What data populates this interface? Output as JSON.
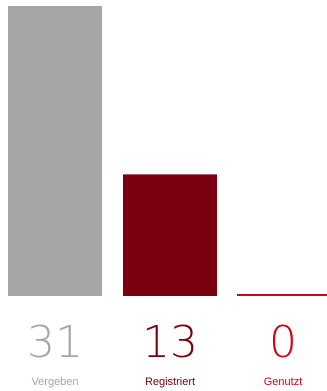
{
  "chart_data": {
    "type": "bar",
    "categories": [
      "Vergeben",
      "Registriert",
      "Genutzt"
    ],
    "values": [
      31,
      13,
      0
    ],
    "value_labels": [
      "31",
      "13",
      "0"
    ],
    "colors": [
      "#a6a6a6",
      "#7a0010",
      "#d0021b"
    ],
    "label_colors": [
      "#a6a6a6",
      "#7a0010",
      "#d0021b"
    ],
    "ylim": [
      0,
      31
    ],
    "grid": false,
    "legend": "none",
    "title": "",
    "xlabel": "",
    "ylabel": ""
  }
}
